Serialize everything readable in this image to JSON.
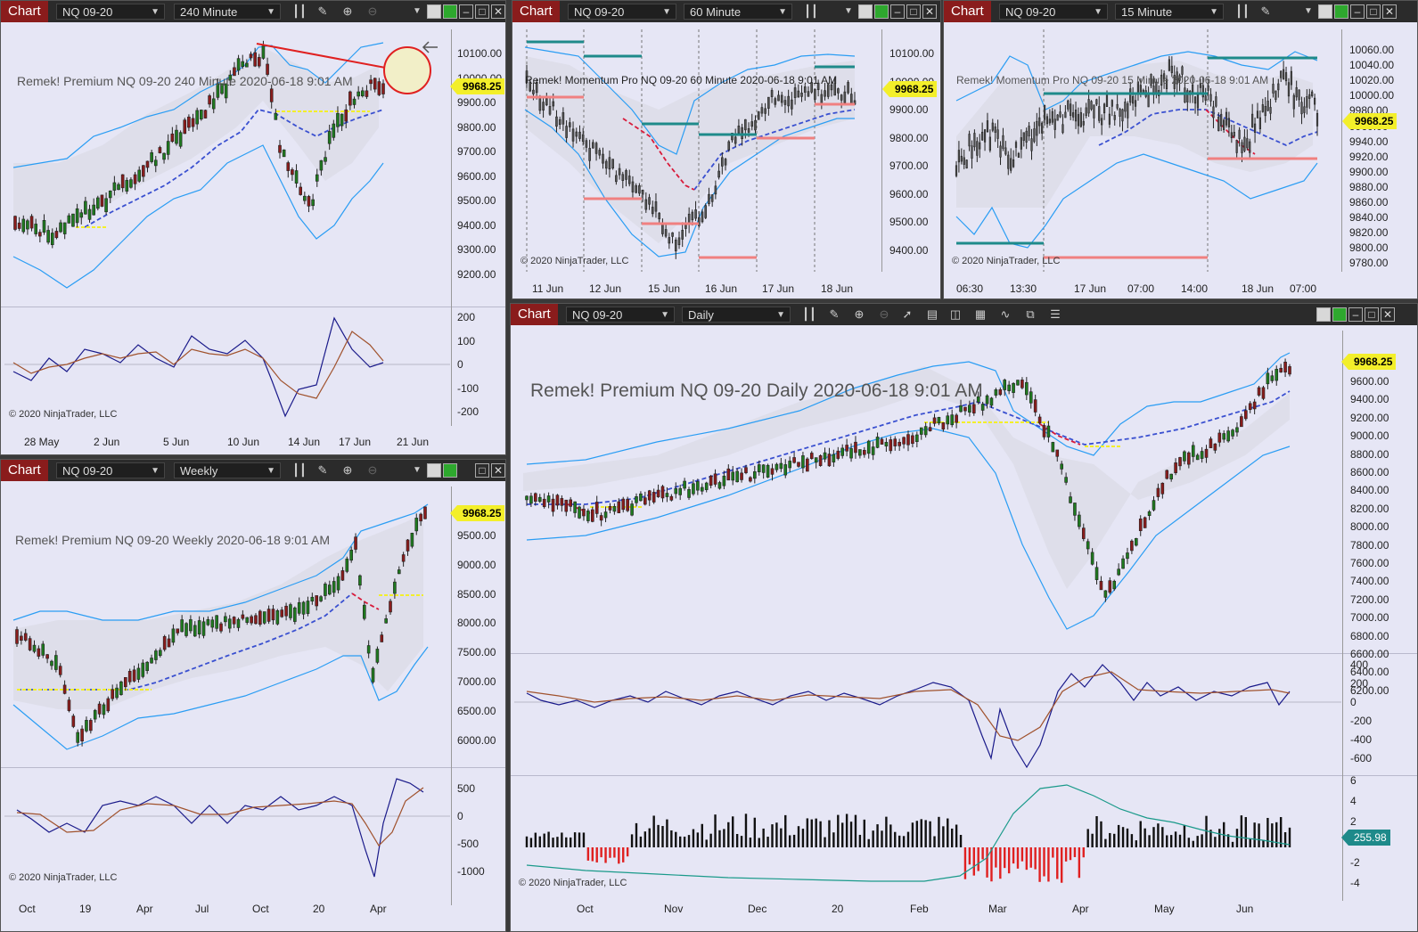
{
  "app": {
    "chart_tab": "Chart"
  },
  "instrument": "NQ 09-20",
  "windows": {
    "w240": {
      "period": "240 Minute",
      "title": "Remek!  Premium  NQ 09-20  240 Minute  2020-06-18 9:01 AM",
      "copyright": "© 2020 NinjaTrader, LLC",
      "last_price": "9968.25",
      "y_ticks": [
        "10100.00",
        "10000.00",
        "9900.00",
        "9800.00",
        "9700.00",
        "9600.00",
        "9500.00",
        "9400.00",
        "9300.00",
        "9200.00"
      ],
      "osc_ticks": [
        "200",
        "100",
        "0",
        "-100",
        "-200"
      ],
      "x_ticks": [
        "28 May",
        "2 Jun",
        "5 Jun",
        "10 Jun",
        "14 Jun",
        "17 Jun",
        "21 Jun"
      ]
    },
    "w60": {
      "period": "60 Minute",
      "title": "Remek!  Momentum Pro  NQ 09-20  60 Minute  2020-06-18 9:01 AM",
      "copyright": "© 2020 NinjaTrader, LLC",
      "last_price": "9968.25",
      "y_ticks": [
        "10100.00",
        "10000.00",
        "9900.00",
        "9800.00",
        "9700.00",
        "9600.00",
        "9500.00",
        "9400.00"
      ],
      "x_ticks": [
        "11 Jun",
        "12 Jun",
        "15 Jun",
        "16 Jun",
        "17 Jun",
        "18 Jun"
      ]
    },
    "w15": {
      "period": "15 Minute",
      "title": "Remek!  Momentum Pro  NQ 09-20  15 Minute  2020-06-18 9:01 AM",
      "copyright": "© 2020 NinjaTrader, LLC",
      "last_price": "9968.25",
      "y_ticks": [
        "10060.00",
        "10040.00",
        "10020.00",
        "10000.00",
        "9980.00",
        "9960.00",
        "9940.00",
        "9920.00",
        "9900.00",
        "9880.00",
        "9860.00",
        "9840.00",
        "9820.00",
        "9800.00",
        "9780.00"
      ],
      "x_ticks": [
        "06:30",
        "13:30",
        "17 Jun",
        "07:00",
        "14:00",
        "18 Jun",
        "07:00"
      ]
    },
    "wweekly": {
      "period": "Weekly",
      "title": "Remek!  Premium  NQ 09-20  Weekly  2020-06-18 9:01 AM",
      "copyright": "© 2020 NinjaTrader, LLC",
      "last_price": "9968.25",
      "y_ticks": [
        "9500.00",
        "9000.00",
        "8500.00",
        "8000.00",
        "7500.00",
        "7000.00",
        "6500.00",
        "6000.00"
      ],
      "osc_ticks": [
        "500",
        "0",
        "-500",
        "-1000"
      ],
      "x_ticks": [
        "Oct",
        "19",
        "Apr",
        "Jul",
        "Oct",
        "20",
        "Apr"
      ]
    },
    "wdaily": {
      "period": "Daily",
      "title": "Remek!  Premium  NQ 09-20  Daily  2020-06-18 9:01 AM",
      "copyright": "© 2020 NinjaTrader, LLC",
      "last_price": "9968.25",
      "hist_value": "255.98",
      "y_ticks": [
        "9600.00",
        "9400.00",
        "9200.00",
        "9000.00",
        "8800.00",
        "8600.00",
        "8400.00",
        "8200.00",
        "8000.00",
        "7800.00",
        "7600.00",
        "7400.00",
        "7200.00",
        "7000.00",
        "6800.00",
        "6600.00",
        "6400.00",
        "6200.00"
      ],
      "osc_ticks": [
        "400",
        "200",
        "0",
        "-200",
        "-400",
        "-600"
      ],
      "hist_ticks": [
        "6",
        "4",
        "2",
        "0",
        "-2",
        "-4"
      ],
      "x_ticks": [
        "Oct",
        "Nov",
        "Dec",
        "20",
        "Feb",
        "Mar",
        "Apr",
        "May",
        "Jun"
      ]
    }
  },
  "colors": {
    "chart_tab": "#8a1c1c",
    "bg": "#e6e6f5",
    "band": "#2a9df4",
    "midline": "#3a50d0",
    "yellow": "#f3ef2a",
    "up": "#1f7a1f",
    "down": "#8a1c1c",
    "teal": "#1e8a8a"
  }
}
